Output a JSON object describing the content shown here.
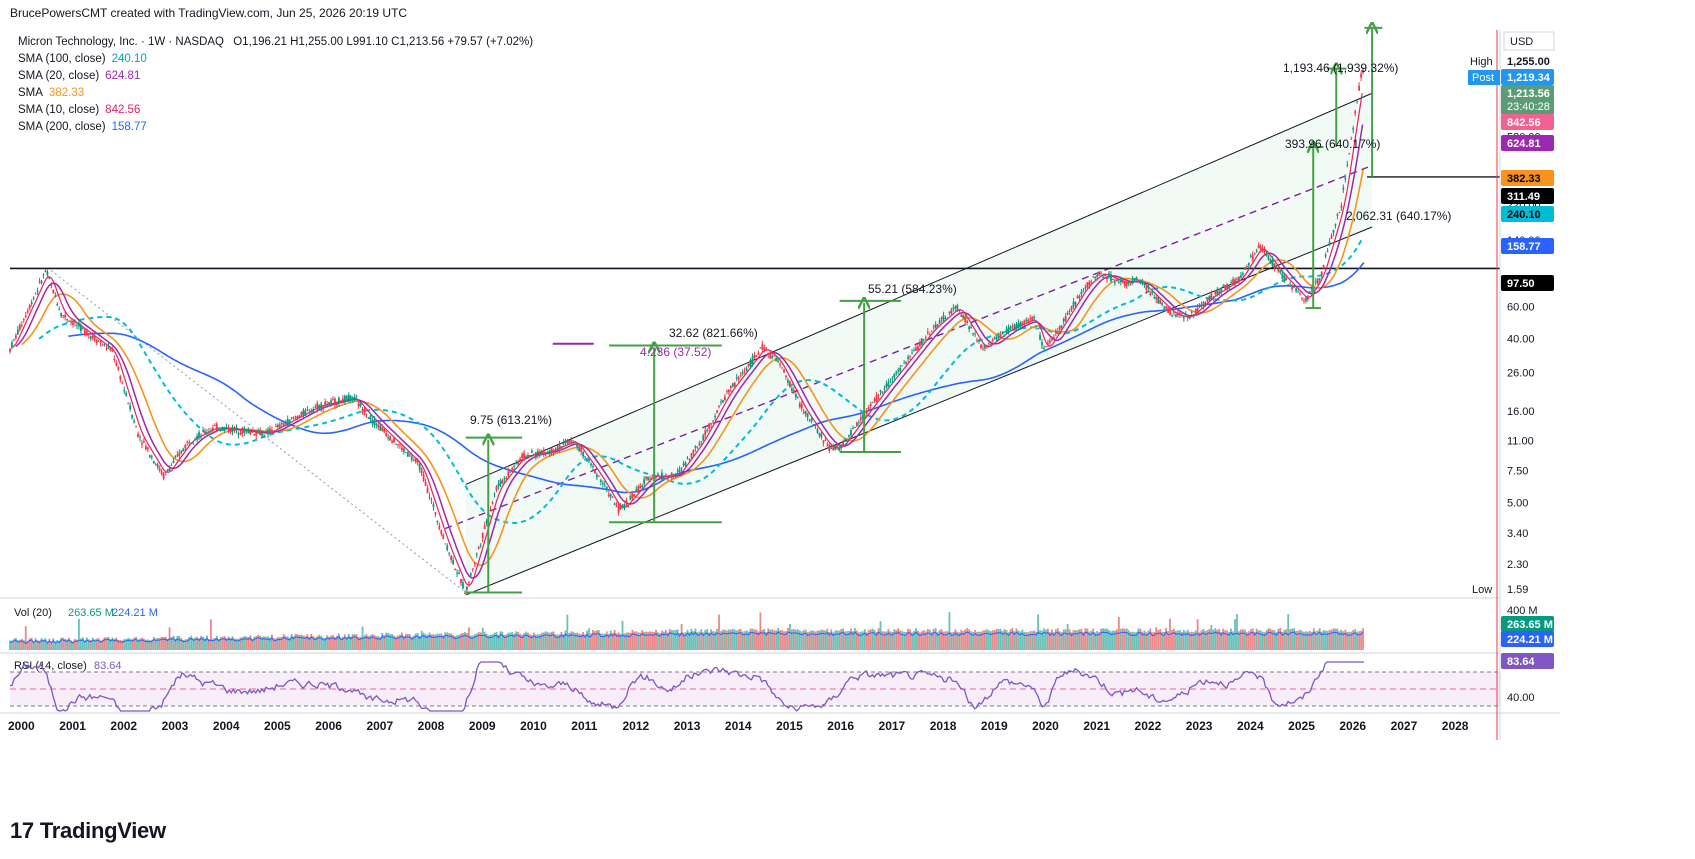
{
  "header": {
    "attribution": "BrucePowersCMT created with TradingView.com, Jun 25, 2026 20:19 UTC"
  },
  "legend": {
    "symbol_line": "Micron Technology, Inc. · 1W · NASDAQ",
    "ohlc": "O1,196.21  H1,255.00  L991.10  C1,213.56  +79.57 (+7.02%)",
    "items": [
      {
        "label": "SMA (100, close)",
        "value": "240.10",
        "color": "#00a6b5"
      },
      {
        "label": "SMA (20, close)",
        "value": "624.81",
        "color": "#9c27b0"
      },
      {
        "label": "SMA",
        "value": "382.33",
        "color": "#f7931a"
      },
      {
        "label": "SMA (10, close)",
        "value": "842.56",
        "color": "#e91e63"
      },
      {
        "label": "SMA (200, close)",
        "value": "158.77",
        "color": "#2962ff"
      }
    ]
  },
  "price_axis": {
    "currency": "USD",
    "high_label": "High",
    "high_value": "1,255.00",
    "post_label": "Post",
    "post_value": "1,219.34",
    "last_value": "1,213.56",
    "countdown": "23:40:28",
    "low_label": "Low",
    "low_value": "1.59",
    "ticks": [
      "520.00",
      "220.00",
      "140.00",
      "60.00",
      "40.00",
      "26.00",
      "16.00",
      "11.00",
      "7.50",
      "5.00",
      "3.40",
      "2.30"
    ],
    "tag_values": [
      {
        "value": "842.56",
        "bg": "#f06292",
        "fg": "#ffffff"
      },
      {
        "value": "624.81",
        "bg": "#9c27b0",
        "fg": "#ffffff"
      },
      {
        "value": "382.33",
        "bg": "#f7931a",
        "fg": "#000000"
      },
      {
        "value": "311.49",
        "bg": "#000000",
        "fg": "#ffffff"
      },
      {
        "value": "240.10",
        "bg": "#00bcd4",
        "fg": "#000000"
      },
      {
        "value": "158.77",
        "bg": "#2962ff",
        "fg": "#ffffff"
      },
      {
        "value": "97.50",
        "bg": "#000000",
        "fg": "#ffffff"
      }
    ]
  },
  "annotations": [
    {
      "text": "1,193.46 (1,939.32%)"
    },
    {
      "text": "393.96 (640.17%)"
    },
    {
      "text": "2,062.31 (640.17%)"
    },
    {
      "text": "55.21 (584.23%)"
    },
    {
      "text": "32.62 (821.66%)"
    },
    {
      "text": "9.75 (613.21%)"
    },
    {
      "text": "4.236 (37.52)"
    }
  ],
  "volume": {
    "label": "Vol (20)",
    "value1": "263.65 M",
    "value2": "224.21 M",
    "axis_max": "400 M",
    "tag1": "263.65 M",
    "tag2": "224.21 M"
  },
  "rsi": {
    "label": "RSI (14, close)",
    "value": "83.64",
    "tick": "40.00",
    "tag": "83.64"
  },
  "x_axis": {
    "years": [
      "2000",
      "2001",
      "2002",
      "2003",
      "2004",
      "2005",
      "2006",
      "2007",
      "2008",
      "2009",
      "2010",
      "2011",
      "2012",
      "2013",
      "2014",
      "2015",
      "2016",
      "2017",
      "2018",
      "2019",
      "2020",
      "2021",
      "2022",
      "2023",
      "2024",
      "2025",
      "2026",
      "2027",
      "2028"
    ]
  },
  "brand": {
    "name": "TradingView"
  },
  "chart_data": {
    "type": "line",
    "title": "Micron Technology, Inc. · 1W · NASDAQ",
    "scale": "log",
    "ylim": [
      1.59,
      1255.0
    ],
    "x": [
      2000.0,
      2000.7,
      2001.0,
      2002.0,
      2002.5,
      2003.0,
      2003.5,
      2004.0,
      2005.0,
      2006.0,
      2006.7,
      2007.0,
      2008.0,
      2008.5,
      2008.9,
      2009.5,
      2010.0,
      2010.5,
      2011.0,
      2011.5,
      2011.9,
      2012.5,
      2013.0,
      2013.5,
      2014.0,
      2014.7,
      2015.0,
      2015.5,
      2016.0,
      2016.2,
      2016.5,
      2017.0,
      2017.5,
      2018.0,
      2018.5,
      2019.0,
      2019.5,
      2020.0,
      2020.2,
      2021.0,
      2021.3,
      2021.8,
      2022.0,
      2022.7,
      2023.0,
      2023.5,
      2024.0,
      2024.4,
      2024.8,
      2025.3,
      2025.6,
      2026.0,
      2026.4
    ],
    "series": [
      {
        "name": "Micron Technology, Inc.",
        "values": [
          35,
          95,
          55,
          34,
          12,
          7,
          11,
          13,
          12,
          17,
          19,
          15,
          8,
          3,
          1.6,
          6,
          9,
          9.5,
          11,
          7,
          4.5,
          7,
          7,
          11,
          20,
          36,
          30,
          16,
          10,
          10,
          13,
          20,
          30,
          45,
          60,
          35,
          45,
          52,
          34,
          78,
          92,
          80,
          85,
          55,
          52,
          70,
          85,
          130,
          92,
          65,
          90,
          220,
          1213
        ]
      }
    ],
    "horizontal_lines": [
      97.5,
      311.49
    ],
    "grid": false
  }
}
